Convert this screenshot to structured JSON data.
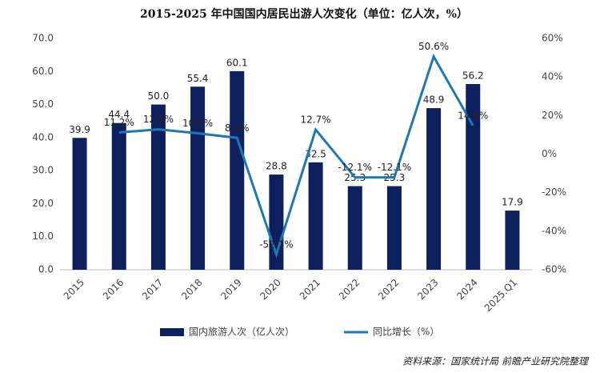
{
  "chart_data": {
    "type": "bar-line",
    "title": "2015-2025 年中国国内居民出游人次变化（单位：亿人次，%）",
    "categories": [
      "2015",
      "2016",
      "2017",
      "2018",
      "2019",
      "2020",
      "2021",
      "2022",
      "2022",
      "2023",
      "2024",
      "2025.Q1"
    ],
    "series": [
      {
        "name": "国内旅游人次（亿人次）",
        "color": "#0d1f5c",
        "type": "bar",
        "values": [
          39.9,
          44.4,
          50.0,
          55.4,
          60.1,
          28.8,
          32.5,
          25.3,
          25.3,
          48.9,
          56.2,
          17.9
        ],
        "value_labels": [
          "39.9",
          "44.4",
          "50.0",
          "55.4",
          "60.1",
          "28.8",
          "32.5",
          "25.3",
          "25.3",
          "48.9",
          "56.2",
          "17.9"
        ]
      },
      {
        "name": "同比增长（%）",
        "color": "#1f78b4",
        "type": "line",
        "axis": "y2",
        "values": [
          null,
          11.2,
          12.8,
          10.8,
          8.4,
          -52.1,
          12.7,
          -12.1,
          -12.1,
          50.6,
          14.8,
          null
        ],
        "value_labels": [
          null,
          "11.2%",
          "12.8%",
          "10.8%",
          "8.4%",
          "-52.1%",
          "12.7%",
          "-12.1%",
          "-12.1%",
          "50.6%",
          "14.8%",
          null
        ]
      }
    ],
    "ylim": [
      0,
      70
    ],
    "yticks": [
      {
        "value": 0,
        "label": "0.0"
      },
      {
        "value": 10,
        "label": "10.0"
      },
      {
        "value": 20,
        "label": "20.0"
      },
      {
        "value": 30,
        "label": "30.0"
      },
      {
        "value": 40,
        "label": "40.0"
      },
      {
        "value": 50,
        "label": "50.0"
      },
      {
        "value": 60,
        "label": "60.0"
      },
      {
        "value": 70,
        "label": "70.0"
      }
    ],
    "y2lim": [
      -60,
      60
    ],
    "y2ticks": [
      {
        "value": -60,
        "label": "-60%"
      },
      {
        "value": -40,
        "label": "-40%"
      },
      {
        "value": -20,
        "label": "-20%"
      },
      {
        "value": 0,
        "label": "0%"
      },
      {
        "value": 20,
        "label": "20%"
      },
      {
        "value": 40,
        "label": "40%"
      },
      {
        "value": 60,
        "label": "60%"
      }
    ],
    "source": "资料来源：国家统计局 前瞻产业研究院整理"
  }
}
